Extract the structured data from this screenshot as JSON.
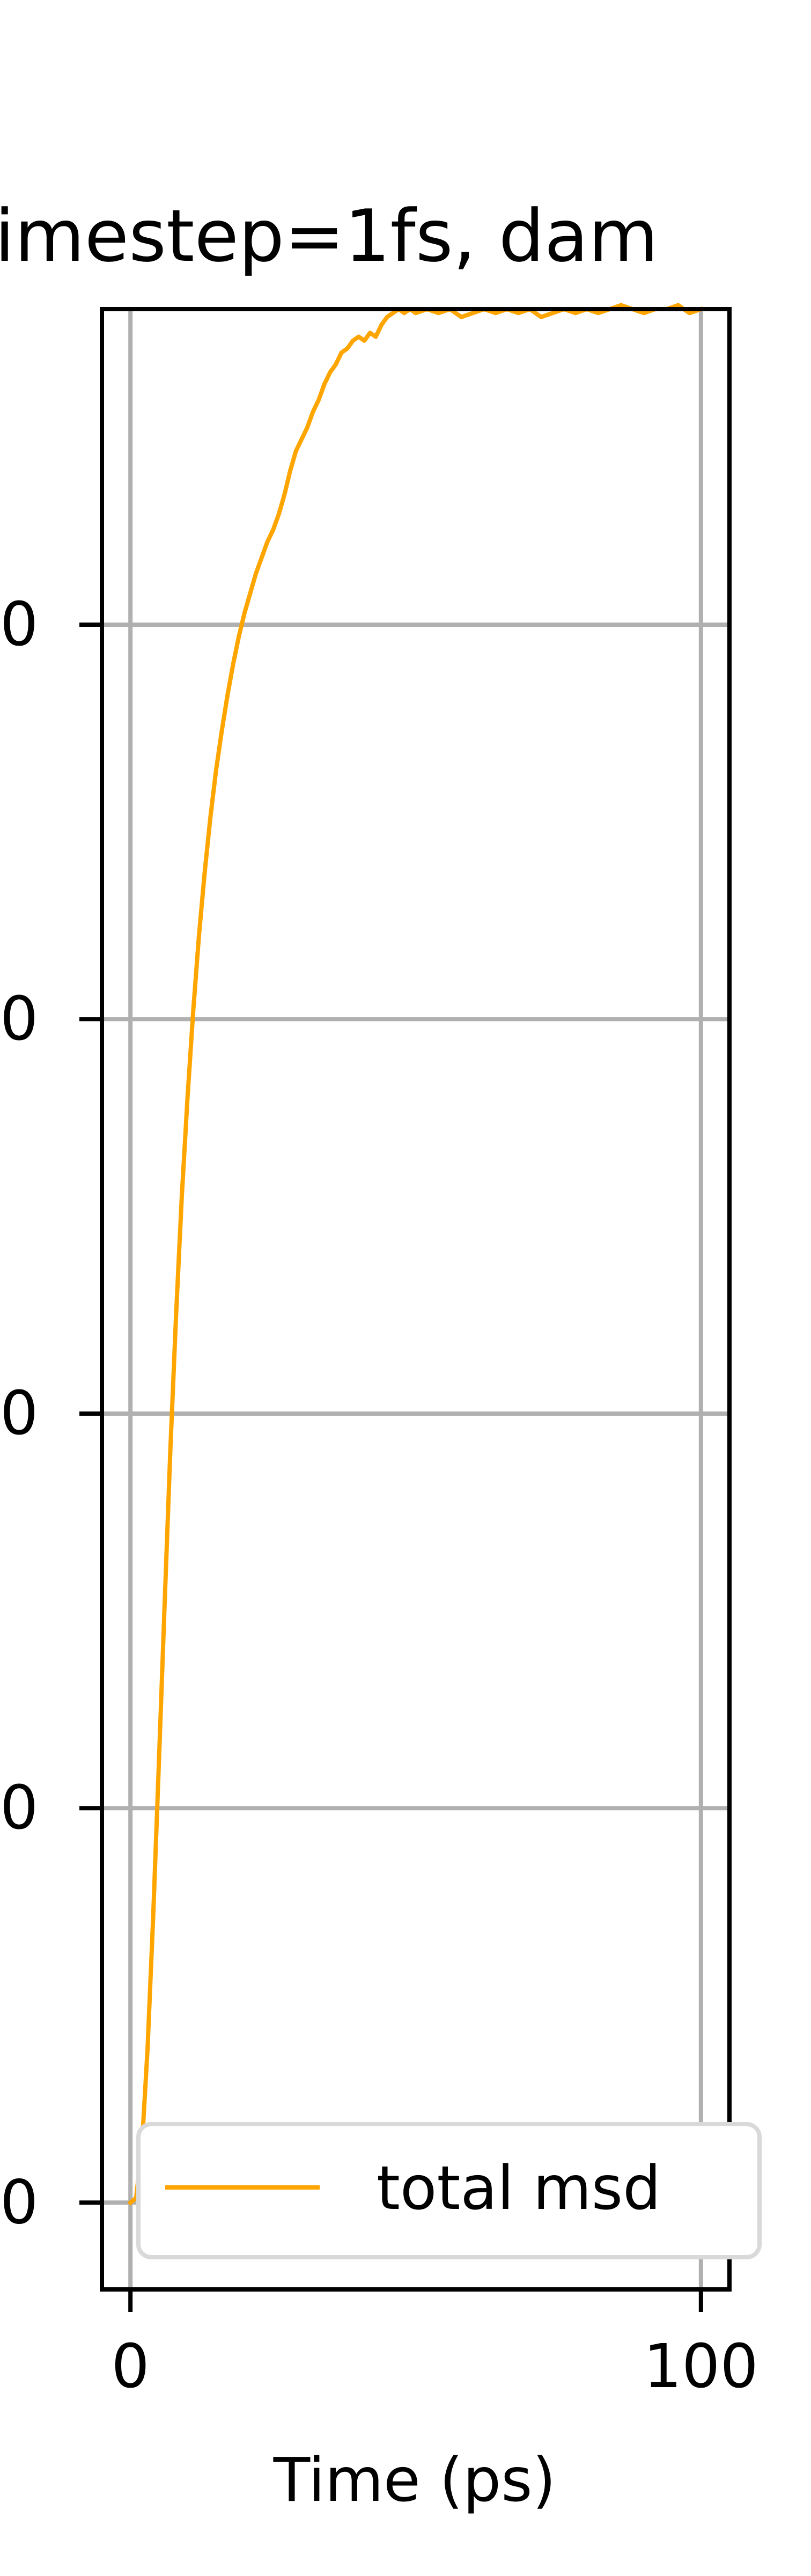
{
  "chart_data": {
    "type": "line",
    "title": "imestep=1fs, dam",
    "xlabel": "Time (ps)",
    "ylabel": "",
    "x_ticks": [
      {
        "value": 0,
        "label": "0"
      },
      {
        "value": 100,
        "label": "100"
      }
    ],
    "y_ticks": [
      {
        "value": 0,
        "label": "0"
      },
      {
        "value": 1,
        "label": "0"
      },
      {
        "value": 2,
        "label": "0"
      },
      {
        "value": 3,
        "label": "0"
      },
      {
        "value": 4,
        "label": "0"
      }
    ],
    "xlim": [
      -5,
      105
    ],
    "ylim": [
      -0.22,
      4.8
    ],
    "grid": true,
    "legend_position": "lower-right",
    "series": [
      {
        "name": "total msd",
        "color": "#ffa500",
        "x": [
          0,
          1,
          2,
          3,
          4,
          5,
          6,
          7,
          8,
          9,
          10,
          11,
          12,
          13,
          14,
          15,
          16,
          17,
          18,
          19,
          20,
          21,
          22,
          23,
          24,
          25,
          26,
          27,
          28,
          29,
          30,
          31,
          32,
          33,
          34,
          35,
          36,
          37,
          38,
          39,
          40,
          41,
          42,
          43,
          44,
          45,
          46,
          47,
          48,
          49,
          50,
          52,
          54,
          56,
          58,
          60,
          62,
          64,
          66,
          68,
          70,
          72,
          74,
          76,
          78,
          80,
          82,
          84,
          86,
          88,
          90,
          92,
          94,
          96,
          98,
          100
        ],
        "y": [
          0.0,
          0.012,
          0.14,
          0.39,
          0.73,
          1.12,
          1.52,
          1.91,
          2.25,
          2.55,
          2.8,
          3.02,
          3.21,
          3.37,
          3.51,
          3.63,
          3.73,
          3.82,
          3.9,
          3.97,
          4.03,
          4.08,
          4.13,
          4.17,
          4.21,
          4.24,
          4.28,
          4.33,
          4.39,
          4.44,
          4.47,
          4.5,
          4.54,
          4.57,
          4.61,
          4.64,
          4.66,
          4.69,
          4.7,
          4.72,
          4.73,
          4.72,
          4.74,
          4.73,
          4.76,
          4.78,
          4.79,
          4.8,
          4.79,
          4.8,
          4.79,
          4.8,
          4.79,
          4.8,
          4.78,
          4.79,
          4.8,
          4.79,
          4.8,
          4.79,
          4.8,
          4.78,
          4.79,
          4.8,
          4.79,
          4.8,
          4.79,
          4.8,
          4.81,
          4.8,
          4.79,
          4.8,
          4.8,
          4.81,
          4.79,
          4.8
        ]
      }
    ]
  }
}
